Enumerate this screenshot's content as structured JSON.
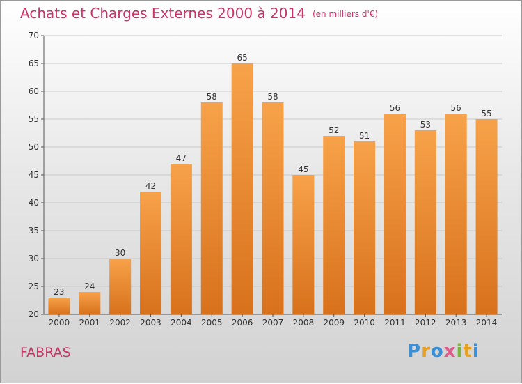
{
  "header": {
    "title": "Achats et Charges Externes 2000 à 2014",
    "unit": "(en milliers d'€)"
  },
  "footer": {
    "commune": "FABRAS",
    "brand": "Proxiti"
  },
  "colors": {
    "bar_light": "#f7a24a",
    "bar_dark": "#d8711c",
    "title": "#cc3366",
    "grid": "#c8c8c8"
  },
  "chart_data": {
    "type": "bar",
    "title": "Achats et Charges Externes 2000 à 2014",
    "subtitle": "(en milliers d'€)",
    "categories": [
      "2000",
      "2001",
      "2002",
      "2003",
      "2004",
      "2005",
      "2006",
      "2007",
      "2008",
      "2009",
      "2010",
      "2011",
      "2012",
      "2013",
      "2014"
    ],
    "values": [
      23,
      24,
      30,
      42,
      47,
      58,
      65,
      58,
      45,
      52,
      51,
      56,
      53,
      56,
      55
    ],
    "ylim": [
      20,
      70
    ],
    "yticks": [
      20,
      25,
      30,
      35,
      40,
      45,
      50,
      55,
      60,
      65,
      70
    ],
    "grid": true,
    "xlabel": "",
    "ylabel": ""
  }
}
